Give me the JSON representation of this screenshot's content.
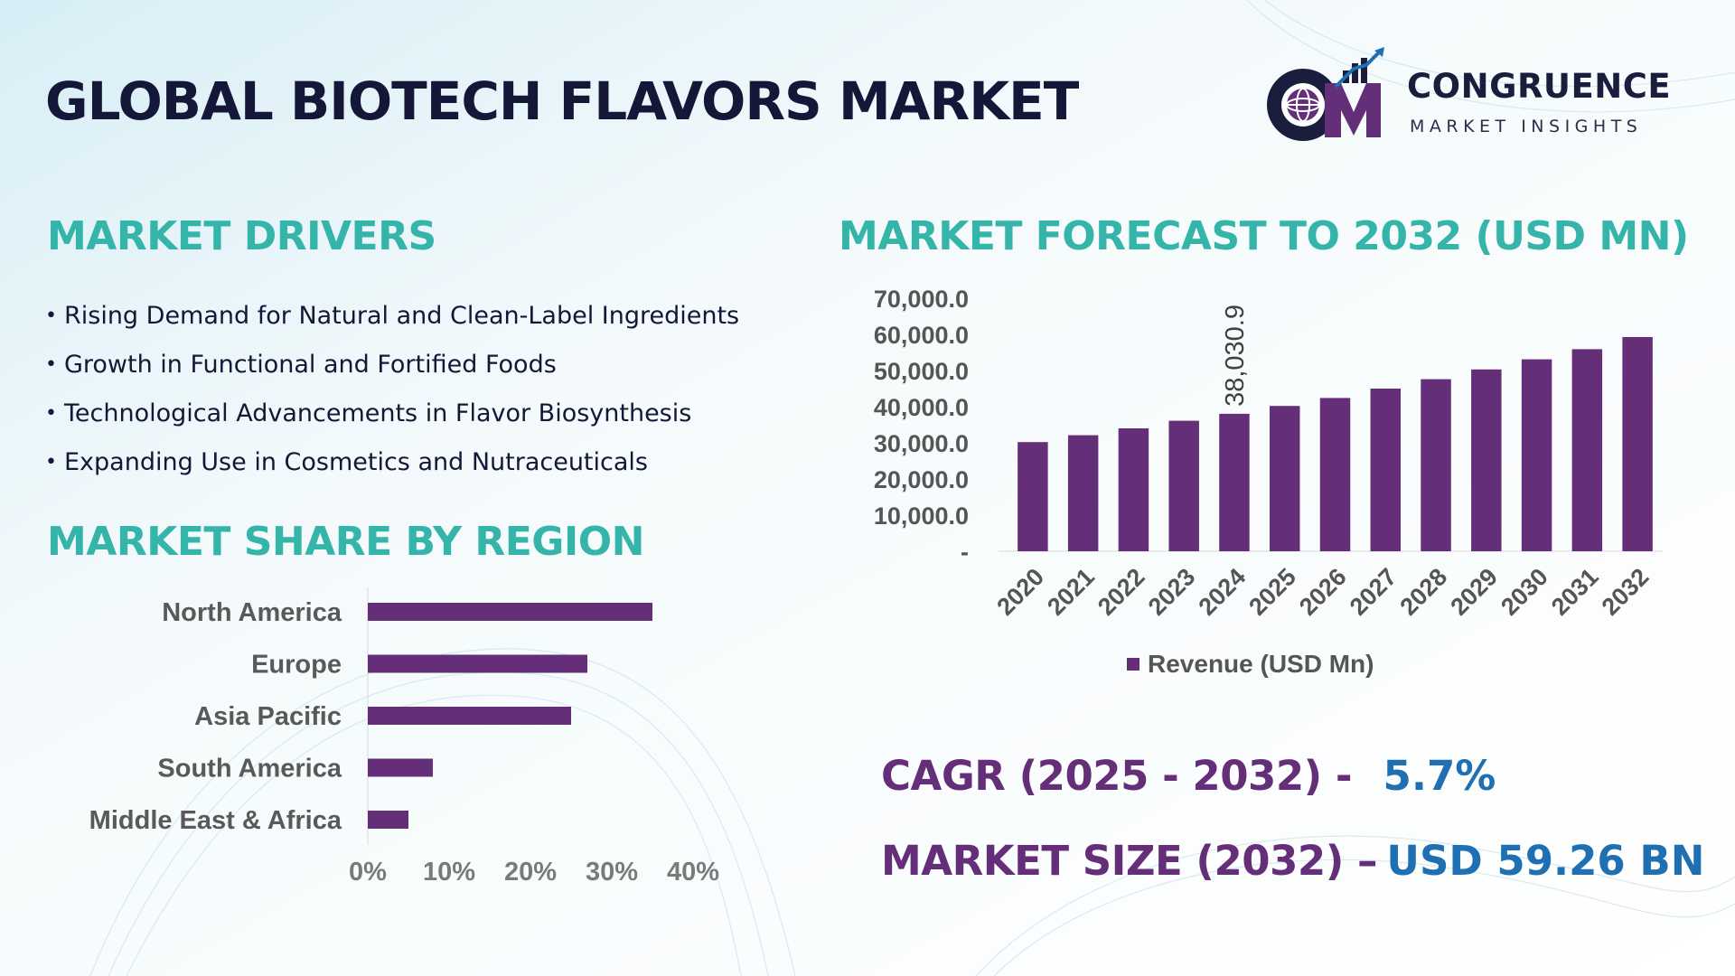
{
  "title": "GLOBAL BIOTECH FLAVORS MARKET",
  "logo": {
    "name": "CONGRUENCE",
    "tagline": "MARKET INSIGHTS"
  },
  "colors": {
    "title": "#141737",
    "section": "#35b4a9",
    "bar": "#642f78",
    "stat_label": "#642f78",
    "stat_value": "#1f6fb3"
  },
  "drivers": {
    "title": "MARKET DRIVERS",
    "items": [
      "Rising Demand for Natural and Clean-Label Ingredients",
      "Growth in Functional and Fortified Foods",
      "Technological Advancements in Flavor Biosynthesis",
      "Expanding Use in Cosmetics and Nutraceuticals"
    ]
  },
  "region": {
    "title": "MARKET SHARE BY REGION"
  },
  "forecast": {
    "title": "MARKET FORECAST TO 2032 (USD MN)"
  },
  "stats": {
    "cagr_label": "CAGR (2025 - 2032) -",
    "cagr_value": "5.7%",
    "size_label": "MARKET SIZE (2032) –",
    "size_value": "USD 59.26 BN"
  },
  "chart_data": [
    {
      "type": "bar",
      "orientation": "vertical",
      "title": "MARKET FORECAST TO 2032 (USD MN)",
      "categories": [
        "2020",
        "2021",
        "2022",
        "2023",
        "2024",
        "2025",
        "2026",
        "2027",
        "2028",
        "2029",
        "2030",
        "2031",
        "2032"
      ],
      "series": [
        {
          "name": "Revenue (USD Mn)",
          "values": [
            30200,
            32100,
            34000,
            36100,
            38030.9,
            40200,
            42400,
            45000,
            47600,
            50300,
            53100,
            55900,
            59260
          ]
        }
      ],
      "data_labels": [
        {
          "category": "2024",
          "text": "38,030.9"
        }
      ],
      "yticks": [
        "-",
        "10,000.0",
        "20,000.0",
        "30,000.0",
        "40,000.0",
        "50,000.0",
        "60,000.0",
        "70,000.0"
      ],
      "ylim": [
        0,
        70000
      ],
      "grid": false,
      "legend": "bottom"
    },
    {
      "type": "bar",
      "orientation": "horizontal",
      "title": "MARKET SHARE BY REGION",
      "categories": [
        "North America",
        "Europe",
        "Asia Pacific",
        "South America",
        "Middle East & Africa"
      ],
      "values": [
        35,
        27,
        25,
        8,
        5
      ],
      "xticks": [
        "0%",
        "10%",
        "20%",
        "30%",
        "40%"
      ],
      "xlim": [
        0,
        40
      ],
      "unit": "%",
      "grid": false
    }
  ]
}
